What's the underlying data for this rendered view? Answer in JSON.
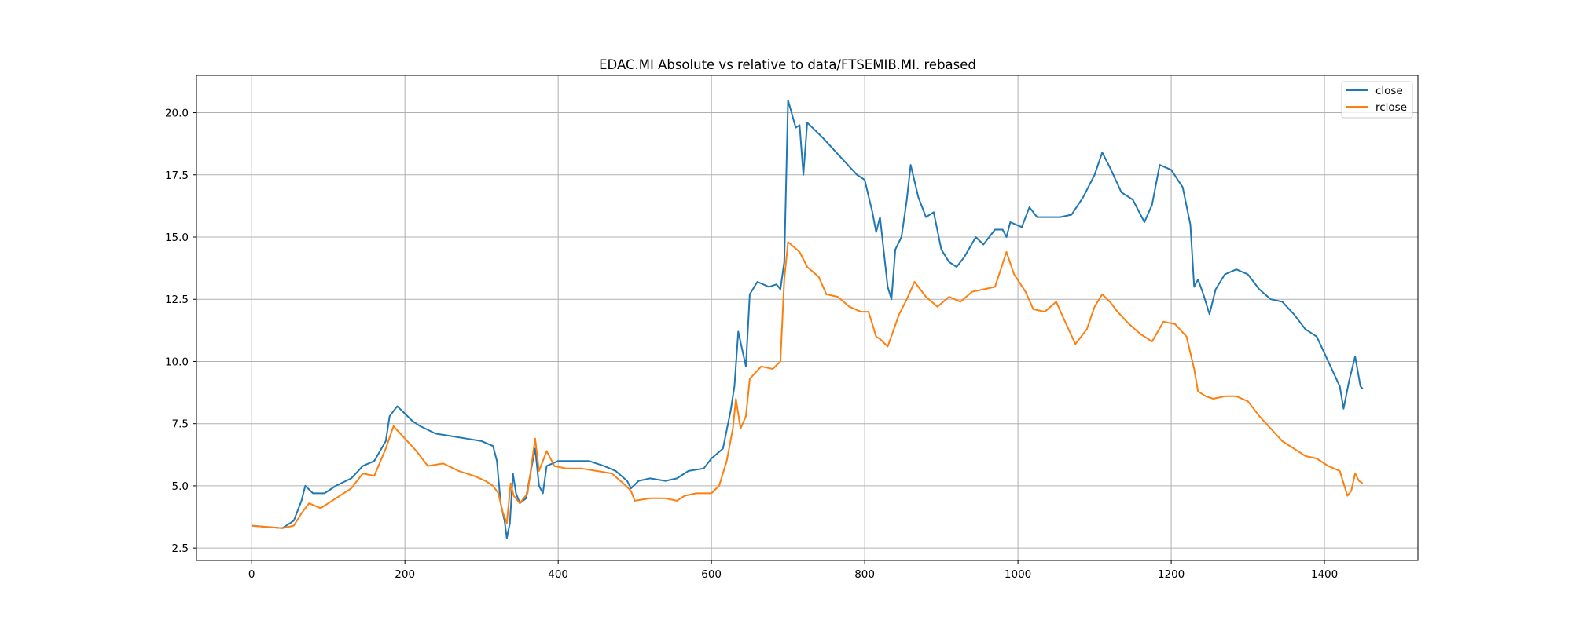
{
  "chart_data": {
    "type": "line",
    "title": "EDAC.MI Absolute vs relative to data/FTSEMIB.MI. rebased",
    "xlabel": "",
    "ylabel": "",
    "xlim": [
      -72,
      1522
    ],
    "ylim": [
      2.0,
      21.5
    ],
    "xticks": [
      0,
      200,
      400,
      600,
      800,
      1000,
      1200,
      1400
    ],
    "yticks": [
      2.5,
      5.0,
      7.5,
      10.0,
      12.5,
      15.0,
      17.5,
      20.0
    ],
    "xtick_labels": [
      "0",
      "200",
      "400",
      "600",
      "800",
      "1000",
      "1200",
      "1400"
    ],
    "ytick_labels": [
      "2.5",
      "5.0",
      "7.5",
      "10.0",
      "12.5",
      "15.0",
      "17.5",
      "20.0"
    ],
    "grid": true,
    "legend_position": "top-right",
    "series": [
      {
        "name": "close",
        "color": "#1f77b4",
        "points": [
          [
            0,
            3.4
          ],
          [
            20,
            3.35
          ],
          [
            40,
            3.3
          ],
          [
            55,
            3.6
          ],
          [
            65,
            4.4
          ],
          [
            70,
            5.0
          ],
          [
            80,
            4.7
          ],
          [
            95,
            4.7
          ],
          [
            110,
            5.0
          ],
          [
            130,
            5.3
          ],
          [
            145,
            5.8
          ],
          [
            160,
            6.0
          ],
          [
            175,
            6.8
          ],
          [
            180,
            7.8
          ],
          [
            190,
            8.2
          ],
          [
            200,
            7.9
          ],
          [
            210,
            7.6
          ],
          [
            220,
            7.4
          ],
          [
            240,
            7.1
          ],
          [
            260,
            7.0
          ],
          [
            280,
            6.9
          ],
          [
            300,
            6.8
          ],
          [
            315,
            6.6
          ],
          [
            320,
            6.0
          ],
          [
            325,
            4.3
          ],
          [
            330,
            3.6
          ],
          [
            333,
            2.9
          ],
          [
            337,
            3.5
          ],
          [
            341,
            5.5
          ],
          [
            345,
            4.7
          ],
          [
            350,
            4.3
          ],
          [
            358,
            4.5
          ],
          [
            365,
            5.7
          ],
          [
            370,
            6.5
          ],
          [
            375,
            5.0
          ],
          [
            380,
            4.7
          ],
          [
            385,
            5.8
          ],
          [
            400,
            6.0
          ],
          [
            420,
            6.0
          ],
          [
            440,
            6.0
          ],
          [
            460,
            5.8
          ],
          [
            475,
            5.6
          ],
          [
            490,
            5.2
          ],
          [
            495,
            4.9
          ],
          [
            505,
            5.2
          ],
          [
            520,
            5.3
          ],
          [
            540,
            5.2
          ],
          [
            555,
            5.3
          ],
          [
            570,
            5.6
          ],
          [
            590,
            5.7
          ],
          [
            600,
            6.1
          ],
          [
            615,
            6.5
          ],
          [
            625,
            8.0
          ],
          [
            630,
            9.0
          ],
          [
            635,
            11.2
          ],
          [
            640,
            10.5
          ],
          [
            645,
            9.8
          ],
          [
            650,
            12.7
          ],
          [
            660,
            13.2
          ],
          [
            675,
            13.0
          ],
          [
            685,
            13.1
          ],
          [
            690,
            12.9
          ],
          [
            695,
            14.0
          ],
          [
            700,
            20.5
          ],
          [
            710,
            19.4
          ],
          [
            715,
            19.5
          ],
          [
            720,
            17.5
          ],
          [
            725,
            19.6
          ],
          [
            745,
            19.0
          ],
          [
            760,
            18.5
          ],
          [
            775,
            18.0
          ],
          [
            790,
            17.5
          ],
          [
            800,
            17.3
          ],
          [
            810,
            16.0
          ],
          [
            815,
            15.2
          ],
          [
            820,
            15.8
          ],
          [
            830,
            13.0
          ],
          [
            835,
            12.5
          ],
          [
            840,
            14.5
          ],
          [
            848,
            15.0
          ],
          [
            855,
            16.5
          ],
          [
            860,
            17.9
          ],
          [
            870,
            16.6
          ],
          [
            880,
            15.8
          ],
          [
            890,
            16.0
          ],
          [
            900,
            14.5
          ],
          [
            910,
            14.0
          ],
          [
            920,
            13.8
          ],
          [
            930,
            14.2
          ],
          [
            945,
            15.0
          ],
          [
            955,
            14.7
          ],
          [
            970,
            15.3
          ],
          [
            980,
            15.3
          ],
          [
            985,
            15.0
          ],
          [
            990,
            15.6
          ],
          [
            1005,
            15.4
          ],
          [
            1015,
            16.2
          ],
          [
            1025,
            15.8
          ],
          [
            1040,
            15.8
          ],
          [
            1055,
            15.8
          ],
          [
            1070,
            15.9
          ],
          [
            1085,
            16.6
          ],
          [
            1100,
            17.5
          ],
          [
            1110,
            18.4
          ],
          [
            1120,
            17.8
          ],
          [
            1135,
            16.8
          ],
          [
            1150,
            16.5
          ],
          [
            1165,
            15.6
          ],
          [
            1175,
            16.3
          ],
          [
            1185,
            17.9
          ],
          [
            1200,
            17.7
          ],
          [
            1215,
            17.0
          ],
          [
            1225,
            15.5
          ],
          [
            1230,
            13.0
          ],
          [
            1235,
            13.3
          ],
          [
            1242,
            12.7
          ],
          [
            1250,
            11.9
          ],
          [
            1258,
            12.9
          ],
          [
            1270,
            13.5
          ],
          [
            1285,
            13.7
          ],
          [
            1300,
            13.5
          ],
          [
            1315,
            12.9
          ],
          [
            1330,
            12.5
          ],
          [
            1345,
            12.4
          ],
          [
            1360,
            11.9
          ],
          [
            1375,
            11.3
          ],
          [
            1390,
            11.0
          ],
          [
            1405,
            10.0
          ],
          [
            1420,
            9.0
          ],
          [
            1425,
            8.1
          ],
          [
            1432,
            9.2
          ],
          [
            1440,
            10.2
          ],
          [
            1447,
            9.0
          ],
          [
            1450,
            8.9
          ]
        ]
      },
      {
        "name": "rclose",
        "color": "#ff7f0e",
        "points": [
          [
            0,
            3.4
          ],
          [
            20,
            3.35
          ],
          [
            40,
            3.3
          ],
          [
            55,
            3.4
          ],
          [
            65,
            3.9
          ],
          [
            75,
            4.3
          ],
          [
            90,
            4.1
          ],
          [
            110,
            4.5
          ],
          [
            130,
            4.9
          ],
          [
            145,
            5.5
          ],
          [
            160,
            5.4
          ],
          [
            175,
            6.5
          ],
          [
            185,
            7.4
          ],
          [
            200,
            6.9
          ],
          [
            215,
            6.4
          ],
          [
            230,
            5.8
          ],
          [
            250,
            5.9
          ],
          [
            270,
            5.6
          ],
          [
            290,
            5.4
          ],
          [
            305,
            5.2
          ],
          [
            315,
            5.0
          ],
          [
            322,
            4.7
          ],
          [
            327,
            4.0
          ],
          [
            333,
            3.5
          ],
          [
            338,
            5.1
          ],
          [
            342,
            4.6
          ],
          [
            350,
            4.3
          ],
          [
            360,
            4.7
          ],
          [
            370,
            6.9
          ],
          [
            375,
            5.6
          ],
          [
            385,
            6.4
          ],
          [
            395,
            5.8
          ],
          [
            410,
            5.7
          ],
          [
            430,
            5.7
          ],
          [
            450,
            5.6
          ],
          [
            470,
            5.5
          ],
          [
            485,
            5.1
          ],
          [
            495,
            4.8
          ],
          [
            500,
            4.4
          ],
          [
            520,
            4.5
          ],
          [
            540,
            4.5
          ],
          [
            555,
            4.4
          ],
          [
            565,
            4.6
          ],
          [
            580,
            4.7
          ],
          [
            600,
            4.7
          ],
          [
            610,
            5.0
          ],
          [
            620,
            6.0
          ],
          [
            628,
            7.3
          ],
          [
            632,
            8.5
          ],
          [
            638,
            7.3
          ],
          [
            645,
            7.8
          ],
          [
            650,
            9.3
          ],
          [
            665,
            9.8
          ],
          [
            680,
            9.7
          ],
          [
            690,
            10.0
          ],
          [
            695,
            13.3
          ],
          [
            700,
            14.8
          ],
          [
            715,
            14.4
          ],
          [
            725,
            13.8
          ],
          [
            740,
            13.4
          ],
          [
            750,
            12.7
          ],
          [
            765,
            12.6
          ],
          [
            780,
            12.2
          ],
          [
            795,
            12.0
          ],
          [
            805,
            12.0
          ],
          [
            815,
            11.0
          ],
          [
            820,
            10.9
          ],
          [
            830,
            10.6
          ],
          [
            845,
            11.9
          ],
          [
            855,
            12.5
          ],
          [
            865,
            13.2
          ],
          [
            880,
            12.6
          ],
          [
            895,
            12.2
          ],
          [
            910,
            12.6
          ],
          [
            925,
            12.4
          ],
          [
            940,
            12.8
          ],
          [
            955,
            12.9
          ],
          [
            970,
            13.0
          ],
          [
            985,
            14.4
          ],
          [
            995,
            13.5
          ],
          [
            1010,
            12.8
          ],
          [
            1020,
            12.1
          ],
          [
            1035,
            12.0
          ],
          [
            1050,
            12.4
          ],
          [
            1060,
            11.7
          ],
          [
            1075,
            10.7
          ],
          [
            1090,
            11.3
          ],
          [
            1100,
            12.2
          ],
          [
            1110,
            12.7
          ],
          [
            1120,
            12.4
          ],
          [
            1130,
            12.0
          ],
          [
            1145,
            11.5
          ],
          [
            1160,
            11.1
          ],
          [
            1175,
            10.8
          ],
          [
            1190,
            11.6
          ],
          [
            1205,
            11.5
          ],
          [
            1220,
            11.0
          ],
          [
            1230,
            9.7
          ],
          [
            1235,
            8.8
          ],
          [
            1245,
            8.6
          ],
          [
            1255,
            8.5
          ],
          [
            1270,
            8.6
          ],
          [
            1285,
            8.6
          ],
          [
            1300,
            8.4
          ],
          [
            1315,
            7.8
          ],
          [
            1330,
            7.3
          ],
          [
            1345,
            6.8
          ],
          [
            1360,
            6.5
          ],
          [
            1375,
            6.2
          ],
          [
            1390,
            6.1
          ],
          [
            1405,
            5.8
          ],
          [
            1420,
            5.6
          ],
          [
            1430,
            4.6
          ],
          [
            1435,
            4.8
          ],
          [
            1440,
            5.5
          ],
          [
            1445,
            5.2
          ],
          [
            1450,
            5.1
          ]
        ]
      }
    ]
  }
}
